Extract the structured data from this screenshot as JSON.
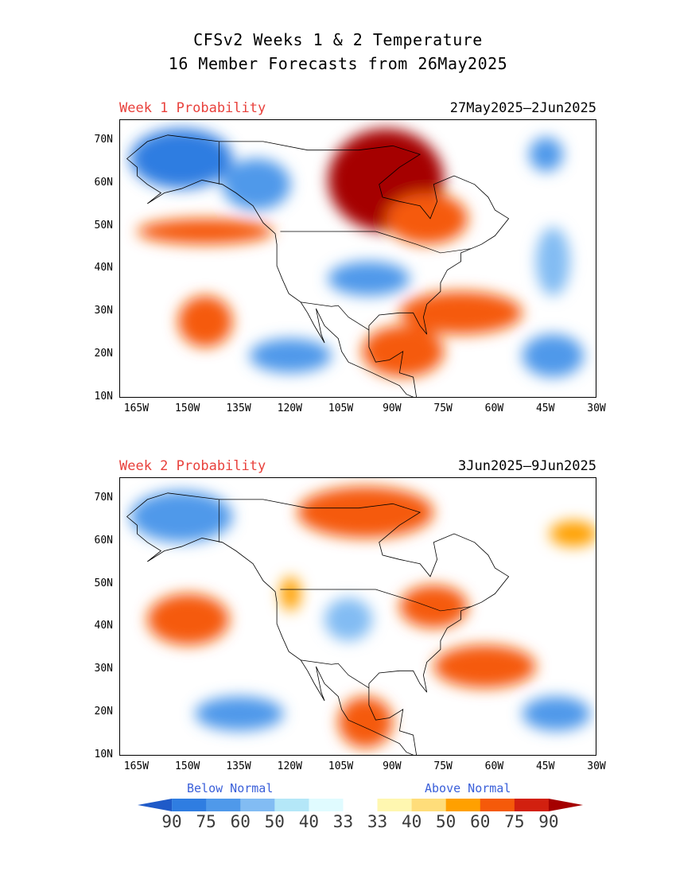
{
  "title": {
    "line1": "CFSv2 Weeks 1 & 2 Temperature",
    "line2": "16 Member Forecasts from 26May2025"
  },
  "panels": [
    {
      "label": "Week 1 Probability",
      "dates": "27May2025—2Jun2025",
      "blobs": [
        {
          "cat": "a90",
          "lon": -92,
          "lat": 61,
          "rx": 17,
          "ry": 12
        },
        {
          "cat": "a75",
          "lon": -80,
          "lat": 52,
          "rx": 12,
          "ry": 6
        },
        {
          "cat": "b75",
          "lon": -152,
          "lat": 66,
          "rx": 15,
          "ry": 7
        },
        {
          "cat": "b60",
          "lon": -130,
          "lat": 60,
          "rx": 10,
          "ry": 6
        },
        {
          "cat": "a75",
          "lon": -145,
          "lat": 49,
          "rx": 20,
          "ry": 3
        },
        {
          "cat": "b60",
          "lon": -97,
          "lat": 38,
          "rx": 12,
          "ry": 4
        },
        {
          "cat": "a75",
          "lon": -145,
          "lat": 28,
          "rx": 8,
          "ry": 6
        },
        {
          "cat": "a75",
          "lon": -70,
          "lat": 30,
          "rx": 18,
          "ry": 5
        },
        {
          "cat": "a75",
          "lon": -87,
          "lat": 21,
          "rx": 12,
          "ry": 6
        },
        {
          "cat": "b60",
          "lon": -120,
          "lat": 20,
          "rx": 12,
          "ry": 4
        },
        {
          "cat": "b60",
          "lon": -43,
          "lat": 20,
          "rx": 9,
          "ry": 5
        },
        {
          "cat": "b60",
          "lon": -45,
          "lat": 67,
          "rx": 5,
          "ry": 4
        },
        {
          "cat": "b50",
          "lon": -43,
          "lat": 42,
          "rx": 5,
          "ry": 8
        }
      ]
    },
    {
      "label": "Week 2 Probability",
      "dates": "3Jun2025—9Jun2025",
      "blobs": [
        {
          "cat": "a75",
          "lon": -98,
          "lat": 67,
          "rx": 20,
          "ry": 6
        },
        {
          "cat": "a75",
          "lon": -78,
          "lat": 45,
          "rx": 10,
          "ry": 5
        },
        {
          "cat": "b60",
          "lon": -152,
          "lat": 66,
          "rx": 15,
          "ry": 6
        },
        {
          "cat": "b50",
          "lon": -103,
          "lat": 42,
          "rx": 7,
          "ry": 5
        },
        {
          "cat": "a75",
          "lon": -150,
          "lat": 42,
          "rx": 12,
          "ry": 6
        },
        {
          "cat": "a75",
          "lon": -63,
          "lat": 31,
          "rx": 15,
          "ry": 5
        },
        {
          "cat": "a75",
          "lon": -98,
          "lat": 18,
          "rx": 8,
          "ry": 6
        },
        {
          "cat": "b60",
          "lon": -135,
          "lat": 20,
          "rx": 13,
          "ry": 4
        },
        {
          "cat": "b60",
          "lon": -42,
          "lat": 20,
          "rx": 10,
          "ry": 4
        },
        {
          "cat": "a60",
          "lon": -37,
          "lat": 62,
          "rx": 7,
          "ry": 3
        },
        {
          "cat": "a60",
          "lon": -120,
          "lat": 48,
          "rx": 3,
          "ry": 4
        }
      ]
    }
  ],
  "axes": {
    "y_ticks": [
      "70N",
      "60N",
      "50N",
      "40N",
      "30N",
      "20N",
      "10N"
    ],
    "y_values": [
      70,
      60,
      50,
      40,
      30,
      20,
      10
    ],
    "x_ticks": [
      "165W",
      "150W",
      "135W",
      "120W",
      "105W",
      "90W",
      "75W",
      "60W",
      "45W",
      "30W"
    ],
    "x_values": [
      -165,
      -150,
      -135,
      -120,
      -105,
      -90,
      -75,
      -60,
      -45,
      -30
    ],
    "lon_range": [
      -170,
      -30
    ],
    "lat_range": [
      10,
      75
    ]
  },
  "legend": {
    "below_label": "Below Normal",
    "above_label": "Above Normal",
    "values": [
      "90",
      "75",
      "60",
      "50",
      "40",
      "33",
      "33",
      "40",
      "50",
      "60",
      "75",
      "90"
    ],
    "colors": [
      "#1f5ac8",
      "#2f7de1",
      "#4f99ea",
      "#82bcf3",
      "#b4e7f8",
      "#e0fbff",
      "#ffffff",
      "#fff7b0",
      "#ffdd7a",
      "#ffa000",
      "#f55a0a",
      "#d2200f",
      "#a50000"
    ],
    "categories": {
      "b90": "#1f5ac8",
      "b75": "#2f7de1",
      "b60": "#4f99ea",
      "b50": "#82bcf3",
      "b40": "#b4e7f8",
      "b33": "#e0fbff",
      "a40": "#fff7b0",
      "a50": "#ffdd7a",
      "a60": "#ffa000",
      "a75": "#f55a0a",
      "a90": "#a50000"
    }
  }
}
